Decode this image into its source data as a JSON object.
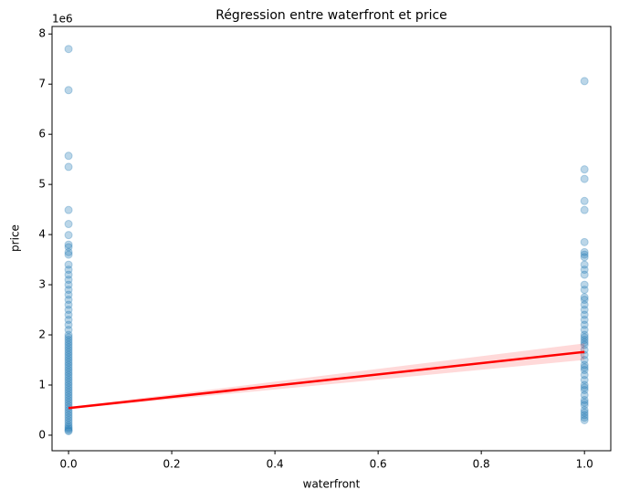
{
  "chart_data": {
    "type": "scatter",
    "title": "Régression entre waterfront et price",
    "x_label": "waterfront",
    "y_label": "price",
    "y_offset_text": "1e6",
    "xlim": [
      -0.032,
      1.051
    ],
    "ylim": [
      -0.31,
      8.15
    ],
    "xticks": [
      {
        "value": 0,
        "label": "0.0"
      },
      0.2,
      0.4,
      0.6,
      0.8,
      {
        "value": 1,
        "label": "1.0"
      }
    ],
    "yticks": [
      0,
      1,
      2,
      3,
      4,
      5,
      6,
      7,
      8
    ],
    "series": [
      {
        "color": "#1f77b4",
        "x": [
          0,
          0,
          0,
          0,
          0,
          0,
          0,
          0,
          0,
          0,
          0,
          0,
          0,
          0,
          0,
          0,
          0,
          0,
          0,
          0,
          0,
          0,
          0,
          0,
          0,
          0,
          0,
          0,
          0,
          0,
          0,
          0,
          0,
          0,
          0,
          0,
          0,
          0,
          0,
          0,
          0,
          0,
          0,
          0,
          0,
          0,
          0,
          0,
          0,
          0,
          0,
          0,
          0,
          0,
          0,
          0,
          0,
          0,
          0,
          0,
          0,
          0,
          0,
          0,
          0,
          0,
          1,
          1,
          1,
          1,
          1,
          1,
          1,
          1,
          1,
          1,
          1,
          1,
          1,
          1,
          1,
          1,
          1,
          1,
          1,
          1,
          1,
          1,
          1,
          1,
          1,
          1,
          1,
          1,
          1,
          1,
          1,
          1,
          1,
          1,
          1,
          1,
          1,
          1,
          1,
          1,
          1,
          1,
          1,
          1,
          1,
          1,
          1
        ],
        "values": [
          0.08,
          0.1,
          0.13,
          0.16,
          0.2,
          0.25,
          0.3,
          0.35,
          0.4,
          0.45,
          0.5,
          0.55,
          0.6,
          0.65,
          0.7,
          0.75,
          0.8,
          0.85,
          0.9,
          0.95,
          1.0,
          1.05,
          1.1,
          1.15,
          1.2,
          1.25,
          1.3,
          1.35,
          1.4,
          1.45,
          1.5,
          1.55,
          1.6,
          1.65,
          1.7,
          1.75,
          1.8,
          1.85,
          1.9,
          1.95,
          2.0,
          2.1,
          2.2,
          2.3,
          2.4,
          2.5,
          2.6,
          2.7,
          2.8,
          2.9,
          3.0,
          3.1,
          3.2,
          3.3,
          3.4,
          3.6,
          3.65,
          3.75,
          3.8,
          3.99,
          4.21,
          4.49,
          5.35,
          5.57,
          6.88,
          7.7,
          7.06,
          5.3,
          5.11,
          4.67,
          4.49,
          3.85,
          3.65,
          3.6,
          3.55,
          3.4,
          3.3,
          3.2,
          3.0,
          2.9,
          2.75,
          2.7,
          2.6,
          2.5,
          2.4,
          2.3,
          2.2,
          2.1,
          2.0,
          1.95,
          1.9,
          1.85,
          1.8,
          1.7,
          1.6,
          1.5,
          1.4,
          1.35,
          1.3,
          1.2,
          1.1,
          1.0,
          0.95,
          0.9,
          0.8,
          0.7,
          0.65,
          0.6,
          0.5,
          0.45,
          0.4,
          0.35,
          0.3
        ]
      }
    ],
    "regression": {
      "color": "#ff0000",
      "x": [
        0,
        1
      ],
      "values": [
        0.54,
        1.66
      ],
      "ci_lower": [
        0.52,
        1.5
      ],
      "ci_upper": [
        0.56,
        1.83
      ]
    }
  }
}
